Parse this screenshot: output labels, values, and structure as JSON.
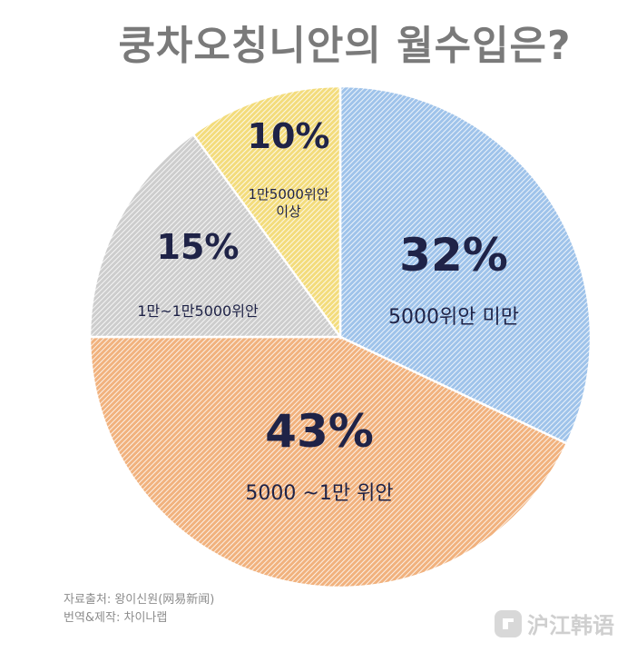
{
  "chart_data": {
    "type": "pie",
    "title": "쿵차오칭니안의 월수입은?",
    "slices": [
      {
        "label": "5000위안 미만",
        "value": 32,
        "value_label": "32%",
        "color": "#9fc3ea",
        "stripe": "#ffffff"
      },
      {
        "label": "5000 ~1만 위안",
        "value": 43,
        "value_label": "43%",
        "color": "#f1b27e",
        "stripe": "#ffffff"
      },
      {
        "label": "1만~1만5000위안",
        "value": 15,
        "value_label": "15%",
        "color": "#cdcdcd",
        "stripe": "#ffffff"
      },
      {
        "label": "1만5000위안 이상",
        "value": 10,
        "value_label": "10%",
        "color": "#f3dc7c",
        "stripe": "#ffffff"
      }
    ]
  },
  "credits": {
    "source": "자료출처:  왕이신원(网易新闻)",
    "translation": "번역&제작:  차이나랩"
  },
  "watermark": {
    "text": "沪江韩语",
    "icon": "hujiang-logo-icon"
  }
}
